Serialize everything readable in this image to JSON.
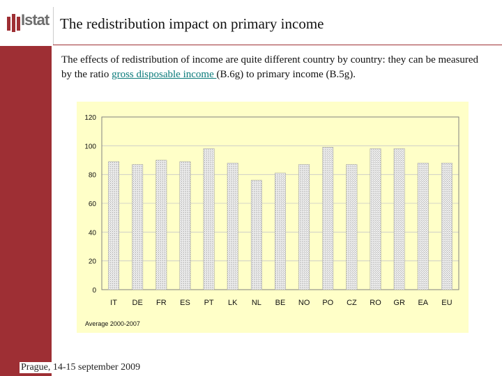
{
  "brand": {
    "logo_text": "Istat",
    "accent": "#9e2f34"
  },
  "header": {
    "title": "The redistribution impact on primary income"
  },
  "intro": {
    "text_before": "The effects of redistribution of income are quite different country by country: they can be measured by the ratio ",
    "link_text": "gross disposable income ",
    "text_after": "(B.6g) to primary income (B.5g)."
  },
  "chart_data": {
    "type": "bar",
    "title": "",
    "xlabel": "",
    "ylabel": "",
    "ylim": [
      0,
      120
    ],
    "yticks": [
      0,
      20,
      40,
      60,
      80,
      100,
      120
    ],
    "categories": [
      "IT",
      "DE",
      "FR",
      "ES",
      "PT",
      "LK",
      "NL",
      "BE",
      "NO",
      "PO",
      "CZ",
      "RO",
      "GR",
      "EA",
      "EU"
    ],
    "values": [
      89,
      87,
      90,
      89,
      98,
      88,
      76,
      81,
      87,
      99,
      87,
      98,
      98,
      88,
      88
    ],
    "annotation": "Average 2000-2007",
    "background": "#ffffc8",
    "plot_background": "#ffffc8",
    "bar_color": "#d9d9d9"
  },
  "footer": {
    "text": "Prague, 14-15 september 2009"
  }
}
